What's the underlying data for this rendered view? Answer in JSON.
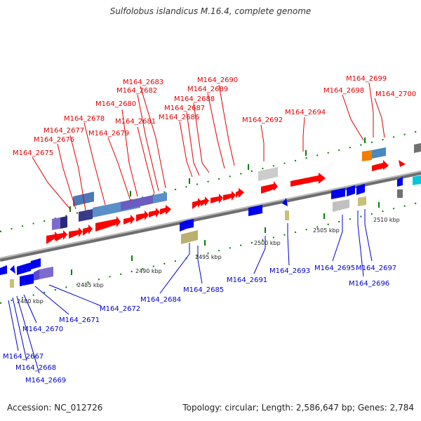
{
  "title": "Sulfolobus islandicus M.16.4, complete genome",
  "footer": {
    "accession": "Accession: NC_012726",
    "topology": "Topology: circular; Length: 2,586,647 bp; Genes: 2,784"
  },
  "colors": {
    "forward_label": "#e00000",
    "reverse_label": "#0000c8",
    "forward_gene": "#ff0000",
    "reverse_gene": "#0000ee",
    "backbone": "#909090",
    "tick": "#008000"
  },
  "scale_labels": [
    "2480 kbp",
    "2485 kbp",
    "2490 kbp",
    "2495 kbp",
    "2500 kbp",
    "2505 kbp",
    "2510 kbp"
  ],
  "forward_labels": [
    "M164_2675",
    "M164_2676",
    "M164_2677",
    "M164_2678",
    "M164_2679",
    "M164_2680",
    "M164_2681",
    "M164_2682",
    "M164_2683",
    "M164_2686",
    "M164_2687",
    "M164_2688",
    "M164_2689",
    "M164_2690",
    "M164_2692",
    "M164_2694",
    "M164_2698",
    "M164_2699",
    "M164_2700"
  ],
  "reverse_labels": [
    "M164_2667",
    "M164_2668",
    "M164_2669",
    "M164_2670",
    "M164_2671",
    "M164_2672",
    "M164_2684",
    "M164_2685",
    "M164_2691",
    "M164_2693",
    "M164_2695",
    "M164_2696",
    "M164_2697"
  ]
}
